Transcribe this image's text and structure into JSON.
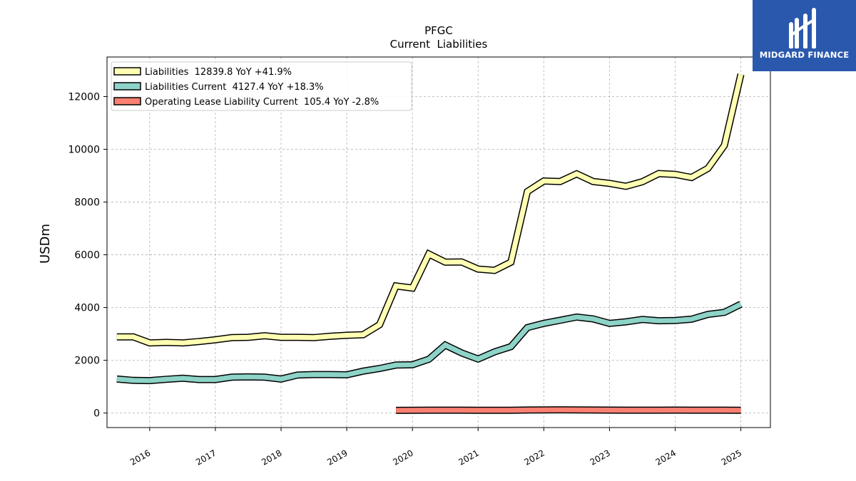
{
  "chart_data": {
    "type": "line",
    "title": "PFGC",
    "subtitle": "Current  Liabilities",
    "ylabel": "USDm",
    "xlabel": "",
    "ylim": [
      -550,
      13500
    ],
    "xlim": [
      2015.35,
      2025.45
    ],
    "yticks": [
      0,
      2000,
      4000,
      6000,
      8000,
      10000,
      12000
    ],
    "xticks": [
      2016,
      2017,
      2018,
      2019,
      2020,
      2021,
      2022,
      2023,
      2024,
      2025
    ],
    "xtick_labels": [
      "2016",
      "2017",
      "2018",
      "2019",
      "2020",
      "2021",
      "2022",
      "2023",
      "2024",
      "2025"
    ],
    "grid": true,
    "legend_position": "top-left",
    "series": [
      {
        "name": "Liabilities",
        "legend_label": "Liabilities  12839.8 YoY +41.9%",
        "color": "#ffffb3",
        "x": [
          2015.5,
          2015.75,
          2016.0,
          2016.25,
          2016.5,
          2016.75,
          2017.0,
          2017.25,
          2017.5,
          2017.75,
          2018.0,
          2018.25,
          2018.5,
          2018.75,
          2019.0,
          2019.25,
          2019.5,
          2019.75,
          2020.0,
          2020.25,
          2020.5,
          2020.75,
          2021.0,
          2021.25,
          2021.5,
          2021.75,
          2022.0,
          2022.25,
          2022.5,
          2022.75,
          2023.0,
          2023.25,
          2023.5,
          2023.75,
          2024.0,
          2024.25,
          2024.5,
          2024.75,
          2025.0
        ],
        "y": [
          2890,
          2890,
          2660,
          2680,
          2660,
          2710,
          2780,
          2860,
          2870,
          2930,
          2870,
          2870,
          2860,
          2910,
          2950,
          2970,
          3350,
          4820,
          4740,
          6030,
          5720,
          5730,
          5460,
          5410,
          5720,
          8400,
          8800,
          8780,
          9070,
          8780,
          8710,
          8600,
          8770,
          9080,
          9050,
          8930,
          9280,
          10150,
          12840
        ]
      },
      {
        "name": "Liabilities Current",
        "legend_label": "Liabilities Current  4127.4 YoY +18.3%",
        "color": "#8dd3c7",
        "x": [
          2015.5,
          2015.75,
          2016.0,
          2016.25,
          2016.5,
          2016.75,
          2017.0,
          2017.25,
          2017.5,
          2017.75,
          2018.0,
          2018.25,
          2018.5,
          2018.75,
          2019.0,
          2019.25,
          2019.5,
          2019.75,
          2020.0,
          2020.25,
          2020.5,
          2020.75,
          2021.0,
          2021.25,
          2021.5,
          2021.75,
          2022.0,
          2022.25,
          2022.5,
          2022.75,
          2023.0,
          2023.25,
          2023.5,
          2023.75,
          2024.0,
          2024.25,
          2024.5,
          2024.75,
          2025.0
        ],
        "y": [
          1290,
          1240,
          1230,
          1280,
          1320,
          1270,
          1270,
          1360,
          1370,
          1360,
          1290,
          1440,
          1460,
          1460,
          1450,
          1590,
          1690,
          1820,
          1830,
          2040,
          2580,
          2280,
          2050,
          2320,
          2520,
          3240,
          3400,
          3520,
          3640,
          3570,
          3400,
          3460,
          3550,
          3500,
          3510,
          3560,
          3740,
          3820,
          4127
        ]
      },
      {
        "name": "Operating Lease Liability Current",
        "legend_label": "Operating Lease Liability Current  105.4 YoY -2.8%",
        "color": "#fb8072",
        "x": [
          2019.75,
          2020.0,
          2020.25,
          2020.5,
          2020.75,
          2021.0,
          2021.25,
          2021.5,
          2021.75,
          2022.0,
          2022.25,
          2022.5,
          2022.75,
          2023.0,
          2023.25,
          2023.5,
          2023.75,
          2024.0,
          2024.25,
          2024.5,
          2024.75,
          2025.0
        ],
        "y": [
          100,
          105,
          108,
          110,
          108,
          106,
          104,
          103,
          115,
          120,
          122,
          118,
          115,
          112,
          110,
          108,
          110,
          112,
          110,
          110,
          108,
          105
        ]
      }
    ]
  },
  "logo": {
    "text": "MIDGARD FINANCE",
    "color": "#2a58ad"
  }
}
